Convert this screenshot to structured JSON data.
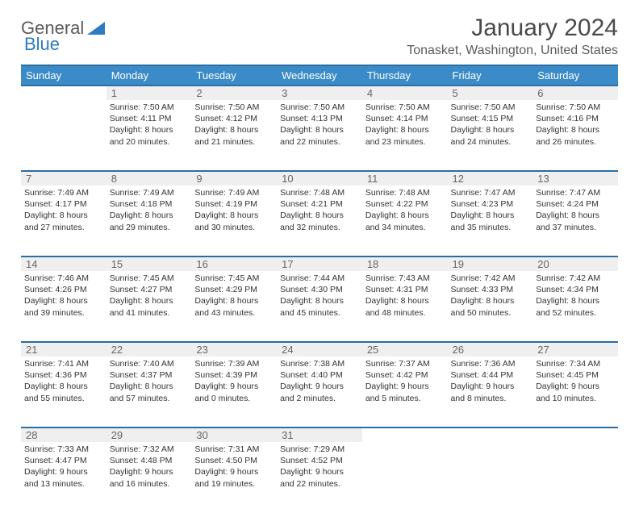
{
  "logo": {
    "text1": "General",
    "text2": "Blue"
  },
  "title": "January 2024",
  "location": "Tonasket, Washington, United States",
  "colors": {
    "header_bg": "#3b8bc8",
    "header_border": "#2a6ea3",
    "daynum_bg": "#efefef",
    "text": "#333333",
    "logo_gray": "#5a5a5a",
    "logo_blue": "#2b7cc0"
  },
  "weekdays": [
    "Sunday",
    "Monday",
    "Tuesday",
    "Wednesday",
    "Thursday",
    "Friday",
    "Saturday"
  ],
  "weeks": [
    {
      "nums": [
        "",
        "1",
        "2",
        "3",
        "4",
        "5",
        "6"
      ],
      "cells": [
        {},
        {
          "sunrise": "7:50 AM",
          "sunset": "4:11 PM",
          "dl1": "Daylight: 8 hours",
          "dl2": "and 20 minutes."
        },
        {
          "sunrise": "7:50 AM",
          "sunset": "4:12 PM",
          "dl1": "Daylight: 8 hours",
          "dl2": "and 21 minutes."
        },
        {
          "sunrise": "7:50 AM",
          "sunset": "4:13 PM",
          "dl1": "Daylight: 8 hours",
          "dl2": "and 22 minutes."
        },
        {
          "sunrise": "7:50 AM",
          "sunset": "4:14 PM",
          "dl1": "Daylight: 8 hours",
          "dl2": "and 23 minutes."
        },
        {
          "sunrise": "7:50 AM",
          "sunset": "4:15 PM",
          "dl1": "Daylight: 8 hours",
          "dl2": "and 24 minutes."
        },
        {
          "sunrise": "7:50 AM",
          "sunset": "4:16 PM",
          "dl1": "Daylight: 8 hours",
          "dl2": "and 26 minutes."
        }
      ]
    },
    {
      "nums": [
        "7",
        "8",
        "9",
        "10",
        "11",
        "12",
        "13"
      ],
      "cells": [
        {
          "sunrise": "7:49 AM",
          "sunset": "4:17 PM",
          "dl1": "Daylight: 8 hours",
          "dl2": "and 27 minutes."
        },
        {
          "sunrise": "7:49 AM",
          "sunset": "4:18 PM",
          "dl1": "Daylight: 8 hours",
          "dl2": "and 29 minutes."
        },
        {
          "sunrise": "7:49 AM",
          "sunset": "4:19 PM",
          "dl1": "Daylight: 8 hours",
          "dl2": "and 30 minutes."
        },
        {
          "sunrise": "7:48 AM",
          "sunset": "4:21 PM",
          "dl1": "Daylight: 8 hours",
          "dl2": "and 32 minutes."
        },
        {
          "sunrise": "7:48 AM",
          "sunset": "4:22 PM",
          "dl1": "Daylight: 8 hours",
          "dl2": "and 34 minutes."
        },
        {
          "sunrise": "7:47 AM",
          "sunset": "4:23 PM",
          "dl1": "Daylight: 8 hours",
          "dl2": "and 35 minutes."
        },
        {
          "sunrise": "7:47 AM",
          "sunset": "4:24 PM",
          "dl1": "Daylight: 8 hours",
          "dl2": "and 37 minutes."
        }
      ]
    },
    {
      "nums": [
        "14",
        "15",
        "16",
        "17",
        "18",
        "19",
        "20"
      ],
      "cells": [
        {
          "sunrise": "7:46 AM",
          "sunset": "4:26 PM",
          "dl1": "Daylight: 8 hours",
          "dl2": "and 39 minutes."
        },
        {
          "sunrise": "7:45 AM",
          "sunset": "4:27 PM",
          "dl1": "Daylight: 8 hours",
          "dl2": "and 41 minutes."
        },
        {
          "sunrise": "7:45 AM",
          "sunset": "4:29 PM",
          "dl1": "Daylight: 8 hours",
          "dl2": "and 43 minutes."
        },
        {
          "sunrise": "7:44 AM",
          "sunset": "4:30 PM",
          "dl1": "Daylight: 8 hours",
          "dl2": "and 45 minutes."
        },
        {
          "sunrise": "7:43 AM",
          "sunset": "4:31 PM",
          "dl1": "Daylight: 8 hours",
          "dl2": "and 48 minutes."
        },
        {
          "sunrise": "7:42 AM",
          "sunset": "4:33 PM",
          "dl1": "Daylight: 8 hours",
          "dl2": "and 50 minutes."
        },
        {
          "sunrise": "7:42 AM",
          "sunset": "4:34 PM",
          "dl1": "Daylight: 8 hours",
          "dl2": "and 52 minutes."
        }
      ]
    },
    {
      "nums": [
        "21",
        "22",
        "23",
        "24",
        "25",
        "26",
        "27"
      ],
      "cells": [
        {
          "sunrise": "7:41 AM",
          "sunset": "4:36 PM",
          "dl1": "Daylight: 8 hours",
          "dl2": "and 55 minutes."
        },
        {
          "sunrise": "7:40 AM",
          "sunset": "4:37 PM",
          "dl1": "Daylight: 8 hours",
          "dl2": "and 57 minutes."
        },
        {
          "sunrise": "7:39 AM",
          "sunset": "4:39 PM",
          "dl1": "Daylight: 9 hours",
          "dl2": "and 0 minutes."
        },
        {
          "sunrise": "7:38 AM",
          "sunset": "4:40 PM",
          "dl1": "Daylight: 9 hours",
          "dl2": "and 2 minutes."
        },
        {
          "sunrise": "7:37 AM",
          "sunset": "4:42 PM",
          "dl1": "Daylight: 9 hours",
          "dl2": "and 5 minutes."
        },
        {
          "sunrise": "7:36 AM",
          "sunset": "4:44 PM",
          "dl1": "Daylight: 9 hours",
          "dl2": "and 8 minutes."
        },
        {
          "sunrise": "7:34 AM",
          "sunset": "4:45 PM",
          "dl1": "Daylight: 9 hours",
          "dl2": "and 10 minutes."
        }
      ]
    },
    {
      "nums": [
        "28",
        "29",
        "30",
        "31",
        "",
        "",
        ""
      ],
      "cells": [
        {
          "sunrise": "7:33 AM",
          "sunset": "4:47 PM",
          "dl1": "Daylight: 9 hours",
          "dl2": "and 13 minutes."
        },
        {
          "sunrise": "7:32 AM",
          "sunset": "4:48 PM",
          "dl1": "Daylight: 9 hours",
          "dl2": "and 16 minutes."
        },
        {
          "sunrise": "7:31 AM",
          "sunset": "4:50 PM",
          "dl1": "Daylight: 9 hours",
          "dl2": "and 19 minutes."
        },
        {
          "sunrise": "7:29 AM",
          "sunset": "4:52 PM",
          "dl1": "Daylight: 9 hours",
          "dl2": "and 22 minutes."
        },
        {},
        {},
        {}
      ]
    }
  ]
}
